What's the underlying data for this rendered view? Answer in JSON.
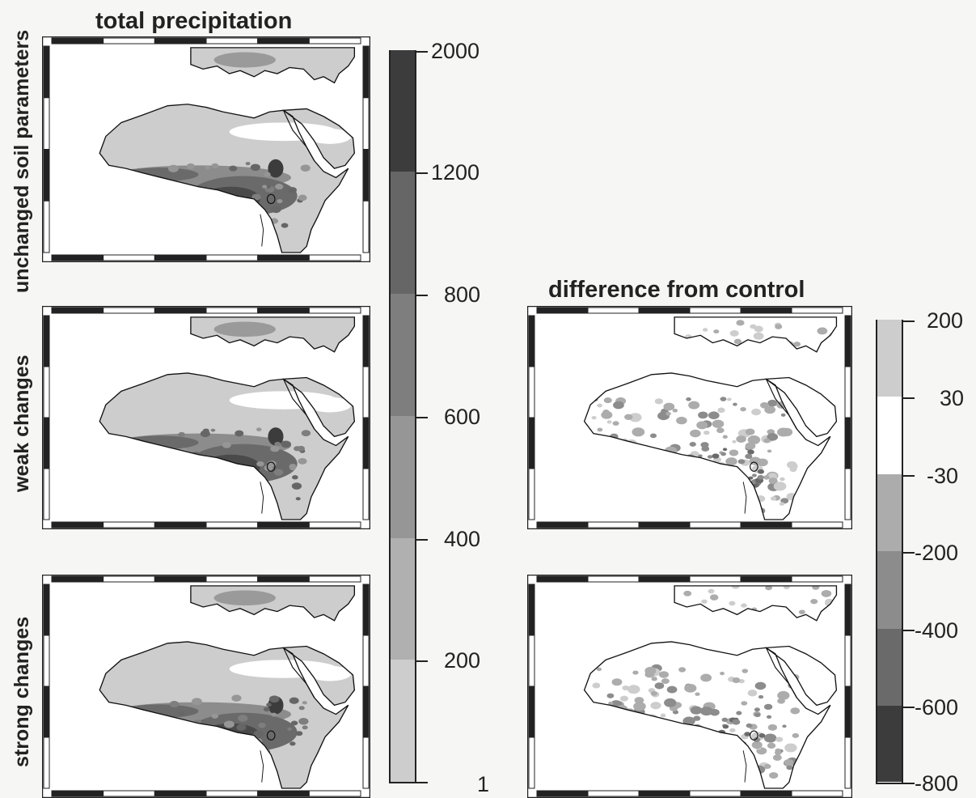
{
  "titles": {
    "left": "total precipitation",
    "right": "difference from control"
  },
  "row_labels": [
    "unchanged soil parameters",
    "weak changes",
    "strong changes"
  ],
  "map_styles": {
    "ocean": "#ffffff",
    "land_base": "#c8c8c8",
    "coast_stroke": "#111111"
  },
  "colorbars": {
    "precipitation": {
      "ticks": [
        "2000",
        "1200",
        "800",
        "600",
        "400",
        "200",
        "1"
      ],
      "levels": [
        {
          "from": "1",
          "to": "200",
          "color": "#cdcdcd"
        },
        {
          "from": "200",
          "to": "400",
          "color": "#b0b0b0"
        },
        {
          "from": "400",
          "to": "600",
          "color": "#969696"
        },
        {
          "from": "600",
          "to": "800",
          "color": "#7e7e7e"
        },
        {
          "from": "800",
          "to": "1200",
          "color": "#666666"
        },
        {
          "from": "1200",
          "to": "2000",
          "color": "#3c3c3c"
        }
      ]
    },
    "difference": {
      "ticks": [
        "200",
        "30",
        "-30",
        "-200",
        "-400",
        "-600",
        "-800"
      ],
      "levels": [
        {
          "from": "-800",
          "to": "-600",
          "color": "#3c3c3c"
        },
        {
          "from": "-600",
          "to": "-400",
          "color": "#6a6a6a"
        },
        {
          "from": "-400",
          "to": "-200",
          "color": "#8c8c8c"
        },
        {
          "from": "-200",
          "to": "-30",
          "color": "#acacac"
        },
        {
          "from": "-30",
          "to": "30",
          "color": "#ffffff"
        },
        {
          "from": "30",
          "to": "200",
          "color": "#cdcdcd"
        }
      ]
    }
  }
}
